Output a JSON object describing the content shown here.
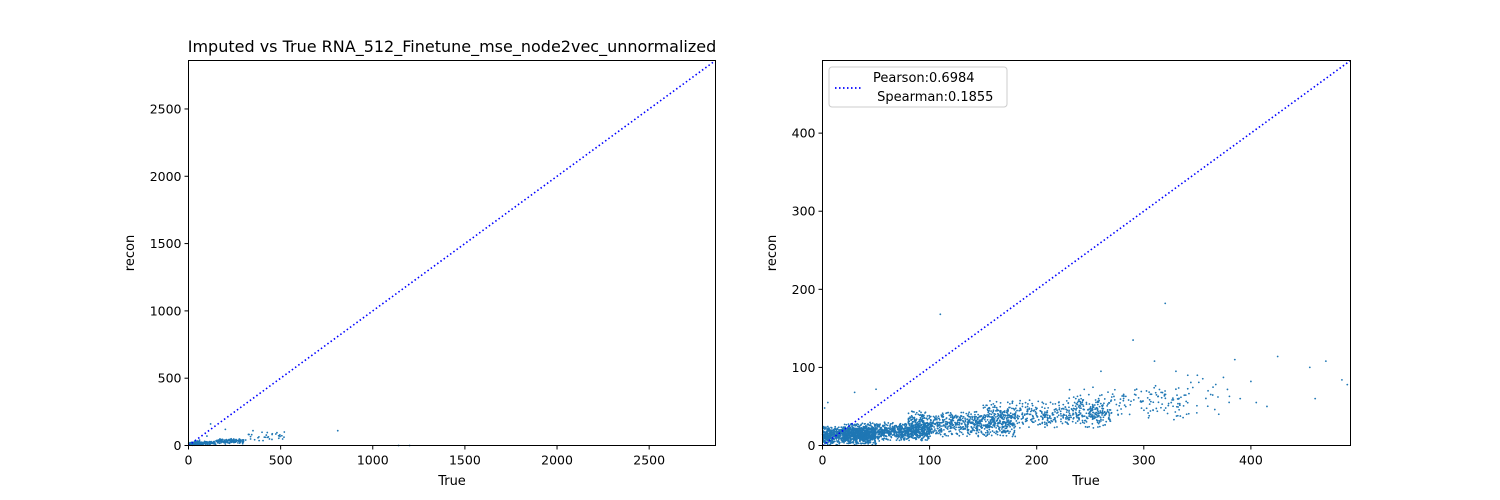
{
  "chart_data": [
    {
      "type": "scatter",
      "title": "Imputed vs True RNA_512_Finetune_mse_node2vec_unnormalized",
      "xlabel": "True",
      "ylabel": "recon",
      "xlim": [
        0,
        2860
      ],
      "ylim": [
        0,
        2860
      ],
      "xticks": [
        0,
        500,
        1000,
        1500,
        2000,
        2500
      ],
      "yticks": [
        0,
        500,
        1000,
        1500,
        2000,
        2500
      ],
      "grid": false,
      "point_color": "#1f77b4",
      "line_color": "#0000ff",
      "reference_line": {
        "style": "dotted",
        "from": [
          0,
          0
        ],
        "to": [
          2860,
          2860
        ]
      },
      "series": [
        {
          "clusters": [
            {
              "x_range": [
                0,
                60
              ],
              "y_range": [
                0,
                25
              ],
              "count": 160
            },
            {
              "x_range": [
                30,
                150
              ],
              "y_range": [
                2,
                35
              ],
              "count": 140
            },
            {
              "x_range": [
                150,
                300
              ],
              "y_range": [
                10,
                55
              ],
              "count": 120
            },
            {
              "x_range": [
                300,
                520
              ],
              "y_range": [
                20,
                100
              ],
              "count": 30
            }
          ],
          "points": [
            [
              120,
              160
            ],
            [
              350,
              110
            ],
            [
              480,
              95
            ],
            [
              520,
              100
            ],
            [
              810,
              110
            ],
            [
              1140,
              0
            ],
            [
              1200,
              0
            ],
            [
              100,
              70
            ],
            [
              200,
              120
            ],
            [
              60,
              40
            ]
          ]
        }
      ]
    },
    {
      "type": "scatter",
      "title": "",
      "xlabel": "True",
      "ylabel": "recon",
      "xlim": [
        0,
        493
      ],
      "ylim": [
        0,
        493
      ],
      "xticks": [
        0,
        100,
        200,
        300,
        400
      ],
      "yticks": [
        0,
        100,
        200,
        300,
        400
      ],
      "grid": false,
      "point_color": "#1f77b4",
      "line_color": "#0000ff",
      "legend": {
        "placement": "top-left",
        "entries": [
          "Pearson:0.6984",
          " Spearman:0.1855"
        ]
      },
      "reference_line": {
        "style": "dotted",
        "from": [
          0,
          0
        ],
        "to": [
          493,
          493
        ]
      },
      "series": [
        {
          "clusters": [
            {
              "x_range": [
                0,
                50
              ],
              "y_range": [
                0,
                25
              ],
              "count": 900
            },
            {
              "x_range": [
                20,
                100
              ],
              "y_range": [
                5,
                30
              ],
              "count": 900
            },
            {
              "x_range": [
                80,
                180
              ],
              "y_range": [
                10,
                45
              ],
              "count": 800
            },
            {
              "x_range": [
                150,
                270
              ],
              "y_range": [
                20,
                60
              ],
              "count": 500
            },
            {
              "x_range": [
                230,
                340
              ],
              "y_range": [
                30,
                80
              ],
              "count": 150
            },
            {
              "x_range": [
                300,
                380
              ],
              "y_range": [
                35,
                95
              ],
              "count": 40
            }
          ],
          "points": [
            [
              110,
              168
            ],
            [
              320,
              182
            ],
            [
              290,
              135
            ],
            [
              385,
              110
            ],
            [
              425,
              114
            ],
            [
              470,
              108
            ],
            [
              455,
              100
            ],
            [
              485,
              84
            ],
            [
              490,
              78
            ],
            [
              400,
              82
            ],
            [
              405,
              55
            ],
            [
              415,
              50
            ],
            [
              460,
              60
            ],
            [
              370,
              40
            ],
            [
              340,
              40
            ],
            [
              260,
              95
            ],
            [
              30,
              68
            ],
            [
              50,
              72
            ],
            [
              5,
              55
            ],
            [
              2,
              48
            ],
            [
              350,
              90
            ],
            [
              310,
              108
            ],
            [
              330,
              95
            ],
            [
              390,
              60
            ],
            [
              360,
              70
            ]
          ]
        }
      ]
    }
  ]
}
